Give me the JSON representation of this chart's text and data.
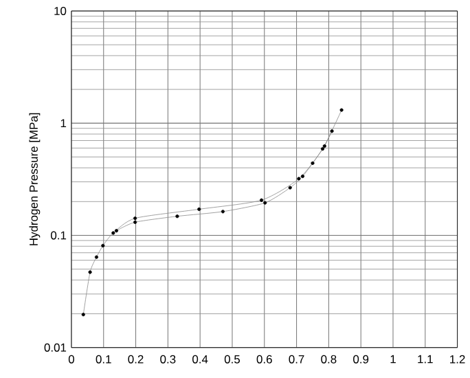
{
  "chart_data": {
    "type": "line",
    "ylabel": "Hydrogen Pressure [MPa]",
    "xlim": [
      0,
      1.2
    ],
    "xticks": [
      0,
      0.1,
      0.2,
      0.3,
      0.4,
      0.5,
      0.6,
      0.7,
      0.8,
      0.9,
      1,
      1.1,
      1.2
    ],
    "ylim": [
      0.01,
      10
    ],
    "yticks": [
      0.01,
      0.1,
      1,
      10
    ],
    "log": "y",
    "grid": true,
    "marker": "circle",
    "line_style": "solid",
    "series": [
      {
        "color": "#888888",
        "x": [
          0.037,
          0.058,
          0.078,
          0.098,
          0.13,
          0.198,
          0.397,
          0.591,
          0.707,
          0.781,
          0.84
        ],
        "values": [
          0.0197,
          0.047,
          0.064,
          0.081,
          0.105,
          0.142,
          0.171,
          0.206,
          0.32,
          0.59,
          1.31
        ]
      },
      {
        "color": "#888888",
        "x": [
          0.14,
          0.198,
          0.329,
          0.471,
          0.602,
          0.68,
          0.719,
          0.75,
          0.787,
          0.81
        ],
        "values": [
          0.11,
          0.131,
          0.148,
          0.163,
          0.195,
          0.266,
          0.336,
          0.44,
          0.625,
          0.85
        ]
      }
    ]
  }
}
